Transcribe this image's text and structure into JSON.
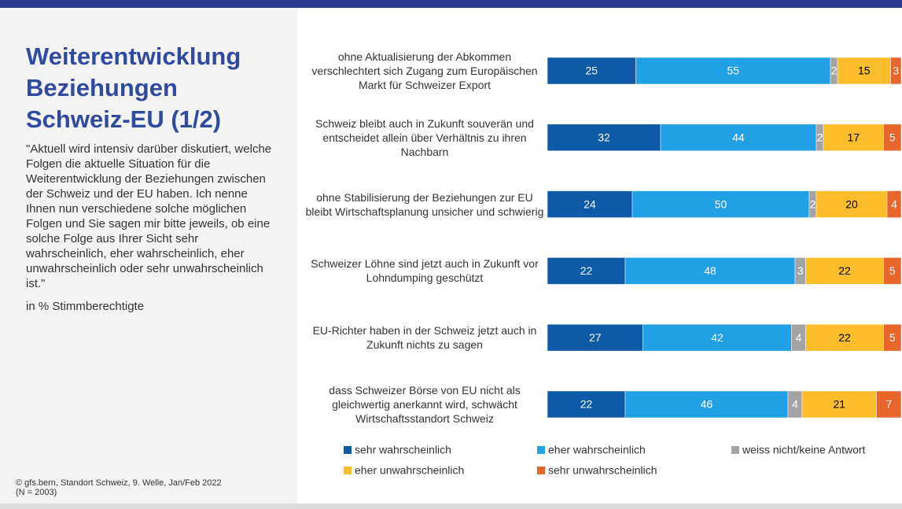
{
  "header": {
    "title": "Weiterentwicklung Beziehungen Schweiz-EU (1/2)",
    "question": "\"Aktuell wird intensiv darüber diskutiert, welche Folgen die aktuelle Situation für die Weiterentwicklung der Beziehungen zwischen der Schweiz und der EU haben. Ich nenne Ihnen nun verschiedene solche möglichen Folgen und Sie sagen mir bitte jeweils, ob eine solche Folge aus Ihrer Sicht sehr wahrscheinlich, eher wahrscheinlich, eher unwahrscheinlich oder sehr unwahrscheinlich ist.\"",
    "unit_note": "in % Stimmberechtigte"
  },
  "footer": {
    "source": "© gfs.bern, Standort Schweiz, 9. Welle, Jan/Feb 2022",
    "sample": "(N = 2003)"
  },
  "chart_data": {
    "type": "stacked_barh",
    "xlim": [
      0,
      100
    ],
    "categories": [
      "ohne Aktualisierung der Abkommen verschlechtert sich Zugang zum Europäischen Markt für Schweizer Export",
      "Schweiz bleibt auch in Zukunft souverän und entscheidet allein über Verhältnis zu ihren Nachbarn",
      "ohne Stabilisierung der Beziehungen zur EU bleibt Wirtschaftsplanung unsicher und schwierig",
      "Schweizer Löhne sind jetzt auch in Zukunft vor Lohndumping geschützt",
      "EU-Richter haben in der Schweiz jetzt auch in Zukunft nichts zu sagen",
      "dass Schweizer Börse von EU nicht als gleichwertig anerkannt wird, schwächt Wirtschaftsstandort Schweiz"
    ],
    "series": [
      {
        "name": "sehr wahrscheinlich",
        "color": "#0f5aa6",
        "label_color": "#ffffff",
        "values": [
          25,
          32,
          24,
          22,
          27,
          22
        ]
      },
      {
        "name": "eher wahrscheinlich",
        "color": "#22a0e6",
        "label_color": "#ffffff",
        "values": [
          55,
          44,
          50,
          48,
          42,
          46
        ]
      },
      {
        "name": "weiss nicht/keine Antwort",
        "color": "#a3a3a3",
        "label_color": "#ffffff",
        "values": [
          2,
          2,
          2,
          3,
          4,
          4
        ]
      },
      {
        "name": "eher unwahrscheinlich",
        "color": "#fbbd2c",
        "label_color": "#000000",
        "values": [
          15,
          17,
          20,
          22,
          22,
          21
        ]
      },
      {
        "name": "sehr unwahrscheinlich",
        "color": "#e8662b",
        "label_color": "#ffffff",
        "values": [
          3,
          5,
          4,
          5,
          5,
          7
        ]
      }
    ]
  }
}
